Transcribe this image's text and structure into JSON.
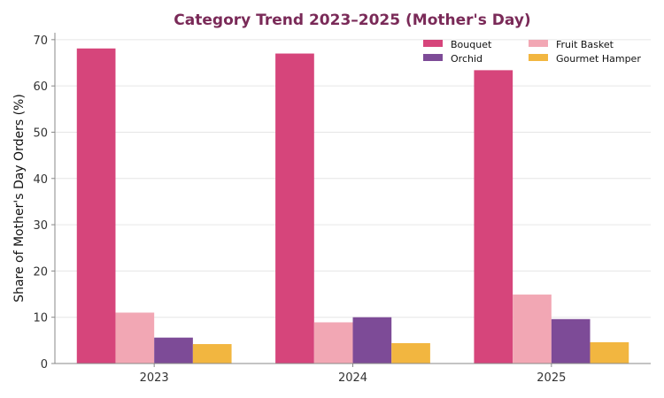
{
  "chart_data": {
    "type": "bar",
    "title": "Category Trend 2023–2025 (Mother's Day)",
    "xlabel": "",
    "ylabel": "Share of Mother's Day Orders (%)",
    "ylim": [
      0,
      71.5
    ],
    "yticks": [
      0,
      10,
      20,
      30,
      40,
      50,
      60,
      70
    ],
    "categories": [
      "2023",
      "2024",
      "2025"
    ],
    "grid": true,
    "legend_position": "top-right",
    "series": [
      {
        "name": "Bouquet",
        "color": "#d6457b",
        "values": [
          68.1,
          67.0,
          63.4
        ]
      },
      {
        "name": "Fruit Basket",
        "color": "#f2a7b4",
        "values": [
          11.0,
          8.9,
          14.9
        ]
      },
      {
        "name": "Orchid",
        "color": "#7d4b97",
        "values": [
          5.6,
          10.0,
          9.6
        ]
      },
      {
        "name": "Gourmet Hamper",
        "color": "#f2b640",
        "values": [
          4.2,
          4.4,
          4.6
        ]
      }
    ]
  }
}
